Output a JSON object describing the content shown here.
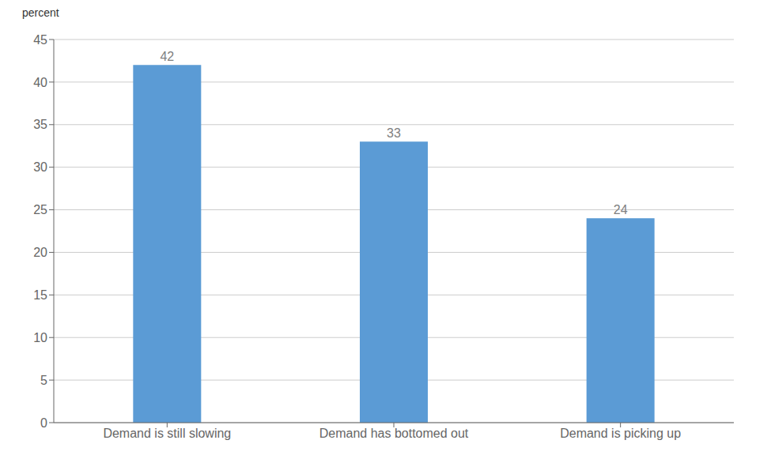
{
  "chart_data": {
    "type": "bar",
    "categories": [
      "Demand is still slowing",
      "Demand has bottomed out",
      "Demand is picking up"
    ],
    "values": [
      42,
      33,
      24
    ],
    "color": "#5b9bd5",
    "ylabel": "percent",
    "ylim": [
      0,
      45
    ],
    "yticks": [
      0,
      5,
      10,
      15,
      20,
      25,
      30,
      35,
      40,
      45
    ],
    "grid": true,
    "data_labels": true
  }
}
